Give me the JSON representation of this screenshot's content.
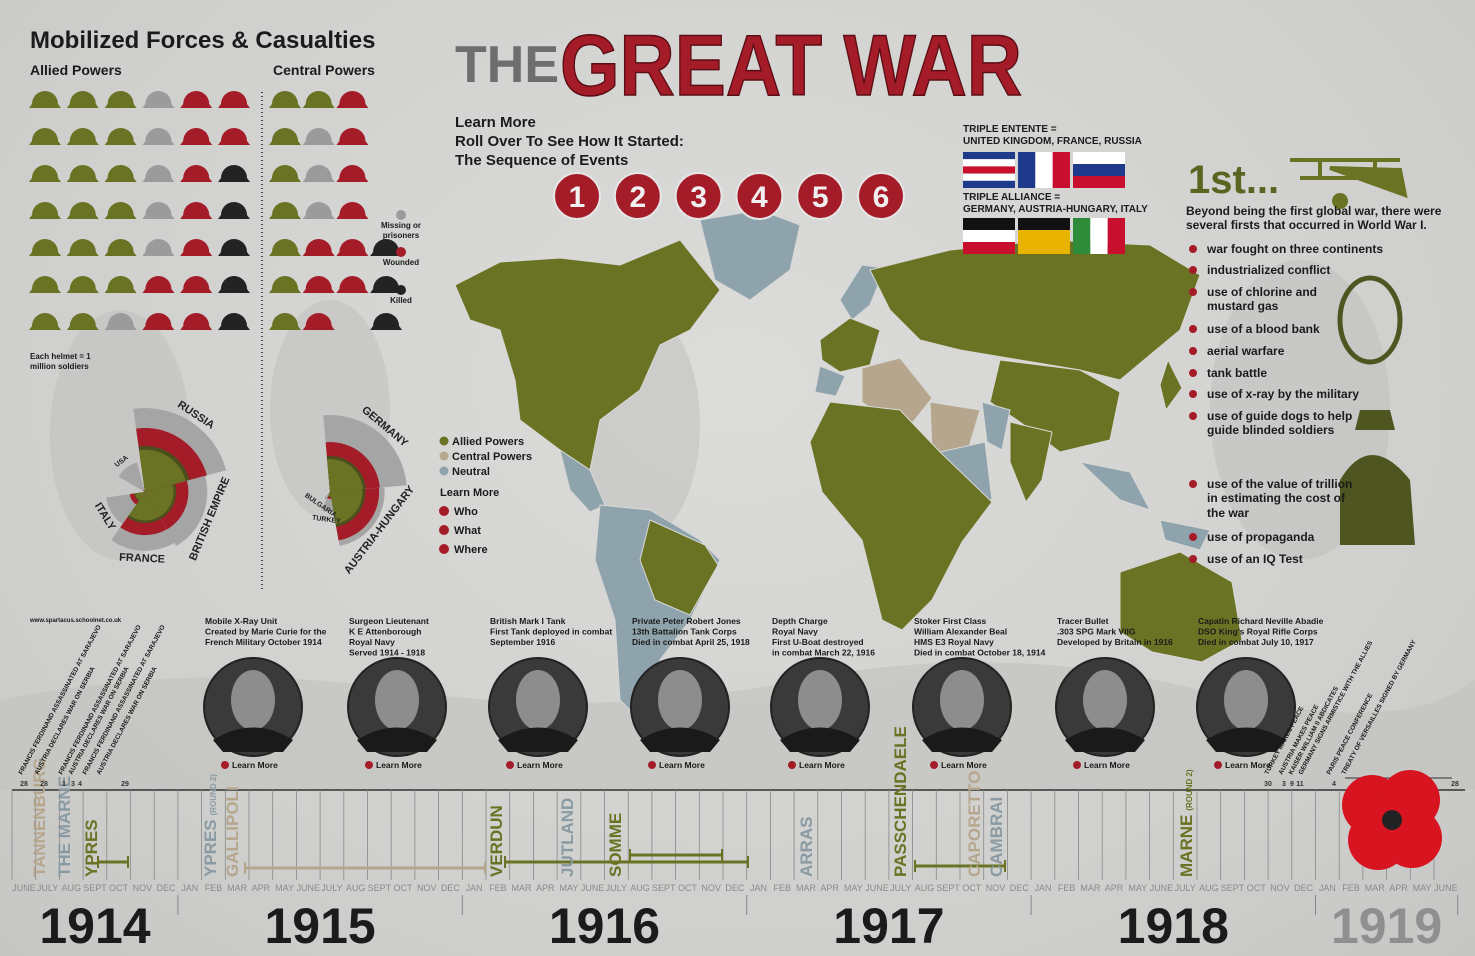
{
  "header": {
    "title_prefix": "THE",
    "title_main": "GREAT WAR"
  },
  "forces": {
    "title": "Mobilized Forces & Casualties",
    "note": "Each helmet = 1 million soldiers",
    "legend": {
      "missing": "Missing or prisoners",
      "wounded": "Wounded",
      "killed": "Killed"
    },
    "allied": {
      "label": "Allied Powers",
      "unharmed": 20,
      "missing": 6,
      "wounded": 11,
      "killed": 5,
      "countries": [
        {
          "name": "RUSSIA",
          "mobilized": 12,
          "casualties": 9.15
        },
        {
          "name": "BRITISH EMPIRE",
          "mobilized": 8.9,
          "casualties": 6.2
        },
        {
          "name": "FRANCE",
          "mobilized": 8.4,
          "casualties": 6.16
        },
        {
          "name": "ITALY",
          "mobilized": 5.6,
          "casualties": 2.2
        },
        {
          "name": "USA",
          "mobilized": 4.36,
          "casualties": 0.32
        }
      ]
    },
    "central": {
      "label": "Central Powers",
      "unharmed": 8,
      "missing": 3,
      "wounded": 9,
      "killed": 3,
      "countries": [
        {
          "name": "GERMANY",
          "mobilized": 11,
          "casualties": 7.14
        },
        {
          "name": "AUSTRIA-HUNGARY",
          "mobilized": 7.8,
          "casualties": 7.02
        },
        {
          "name": "TURKEY",
          "mobilized": 2.85,
          "casualties": 0.98
        },
        {
          "name": "BULGARIA",
          "mobilized": 1.2,
          "casualties": 0.27
        }
      ]
    }
  },
  "source": "www.spartacus.schoolnet.co.uk",
  "sequence": {
    "lines": [
      "Learn More",
      "Roll Over To See How It Started:",
      "The Sequence of Events"
    ],
    "steps": [
      "1",
      "2",
      "3",
      "4",
      "5",
      "6"
    ]
  },
  "alliances": {
    "entente": {
      "label": "TRIPLE ENTENTE =",
      "members": "UNITED KINGDOM, FRANCE, RUSSIA"
    },
    "alliance": {
      "label": "TRIPLE ALLIANCE =",
      "members": "GERMANY, AUSTRIA-HUNGARY, ITALY"
    }
  },
  "map_legend": {
    "items": [
      "Allied Powers",
      "Central Powers",
      "Neutral"
    ],
    "heading": "Learn More",
    "links": [
      "Who",
      "What",
      "Where"
    ]
  },
  "firsts": {
    "title": "1st...",
    "intro": "Beyond being the first global war, there were several firsts that occurred in World War I.",
    "items": [
      "war fought on three continents",
      "industrialized conflict",
      "use of chlorine and mustard gas",
      "use of a blood bank",
      "aerial warfare",
      "tank battle",
      "use of x-ray by the military",
      "use of guide dogs to help guide blinded soldiers",
      "use of the value of trillion in estimating the cost of the war",
      "use of propaganda",
      "use of an IQ Test"
    ]
  },
  "profiles": [
    {
      "lines": [
        "Mobile X-Ray Unit",
        "Created by Marie Curie for the",
        "French Military October 1914"
      ],
      "link": "Learn More"
    },
    {
      "lines": [
        "Surgeon Lieutenant",
        "K E Attenborough",
        "Royal Navy",
        "Served 1914 - 1918"
      ],
      "link": "Learn More"
    },
    {
      "lines": [
        "British Mark I Tank",
        "First Tank deployed in combat",
        "September 1916"
      ],
      "link": "Learn More"
    },
    {
      "lines": [
        "Private Peter Robert Jones",
        "13th Battalion Tank Corps",
        "Died in combat April 25, 1918"
      ],
      "link": "Learn More"
    },
    {
      "lines": [
        "Depth Charge",
        "Royal Navy",
        "First U-Boat destroyed",
        "in combat March 22, 1916"
      ],
      "link": "Learn More"
    },
    {
      "lines": [
        "Stoker First Class",
        "William Alexander Beal",
        "HMS E3 Royal Navy",
        "Died in combat October 18, 1914"
      ],
      "link": "Learn More"
    },
    {
      "lines": [
        "Tracer Bullet",
        ".303 SPG Mark VIIG",
        "Developed by Britain in 1916"
      ],
      "link": "Learn More"
    },
    {
      "lines": [
        "Capatin Richard Neville Abadie",
        "DSO King's Royal Rifle Corps",
        "Died in combat July 10, 1917"
      ],
      "link": "Learn More"
    }
  ],
  "timeline": {
    "years": [
      {
        "label": "1914",
        "months": [
          "JUNE",
          "JULY",
          "AUG",
          "SEPT",
          "OCT",
          "NOV",
          "DEC"
        ]
      },
      {
        "label": "1915",
        "months": [
          "JAN",
          "FEB",
          "MAR",
          "APR",
          "MAY",
          "JUNE",
          "JULY",
          "AUG",
          "SEPT",
          "OCT",
          "NOV",
          "DEC"
        ]
      },
      {
        "label": "1916",
        "months": [
          "JAN",
          "FEB",
          "MAR",
          "APR",
          "MAY",
          "JUNE",
          "JULY",
          "AUG",
          "SEPT",
          "OCT",
          "NOV",
          "DEC"
        ]
      },
      {
        "label": "1917",
        "months": [
          "JAN",
          "FEB",
          "MAR",
          "APR",
          "MAY",
          "JUNE",
          "JULY",
          "AUG",
          "SEPT",
          "OCT",
          "NOV",
          "DEC"
        ]
      },
      {
        "label": "1918",
        "months": [
          "JAN",
          "FEB",
          "MAR",
          "APR",
          "MAY",
          "JUNE",
          "JULY",
          "AUG",
          "SEPT",
          "OCT",
          "NOV",
          "DEC"
        ]
      },
      {
        "label": "1919",
        "months": [
          "JAN",
          "FEB",
          "MAR",
          "APR",
          "MAY",
          "JUNE"
        ]
      }
    ],
    "battles": [
      {
        "name": "TANNENBURG"
      },
      {
        "name": "THE MARNE"
      },
      {
        "name": "YPRES"
      },
      {
        "name": "YPRES",
        "note": "(ROUND 2)"
      },
      {
        "name": "GALLIPOLI"
      },
      {
        "name": "VERDUN"
      },
      {
        "name": "JUTLAND"
      },
      {
        "name": "SOMME"
      },
      {
        "name": "ARRAS"
      },
      {
        "name": "PASSCHENDAELE"
      },
      {
        "name": "CAPORETTO"
      },
      {
        "name": "CAMBRAI"
      },
      {
        "name": "MARNE",
        "note": "(ROUND 2)"
      }
    ],
    "events_start": [
      "FRANCIS FERDINAND ASSASSINATED AT SARAJEVO",
      "AUSTRIA DECLARES WAR ON SERBIA",
      "FRANCIS FERDINAND ASSASSINATED AT SARAJEVO",
      "AUSTRIA DECLARES WAR ON SERBIA",
      "FRANCIS FERDINAND ASSASSINATED AT SARAJEVO",
      "AUSTRIA DECLARES WAR ON SERBIA"
    ],
    "days_start": [
      "28",
      "28",
      "1",
      "3",
      "4",
      "29"
    ],
    "events_end": [
      "TURKEY MAKES PEACE",
      "AUSTRIA MAKES PEACE",
      "KAISER WILLIAM II ABDICATES",
      "GERMANY SIGNS ARMISTICE WITH THE ALLIES",
      "PARIS PEACE CONFERENCE",
      "TREATY OF VERSAILLES SIGNED BY GERMANY"
    ],
    "days_end": [
      "30",
      "3",
      "9",
      "11",
      "4",
      "28"
    ]
  }
}
